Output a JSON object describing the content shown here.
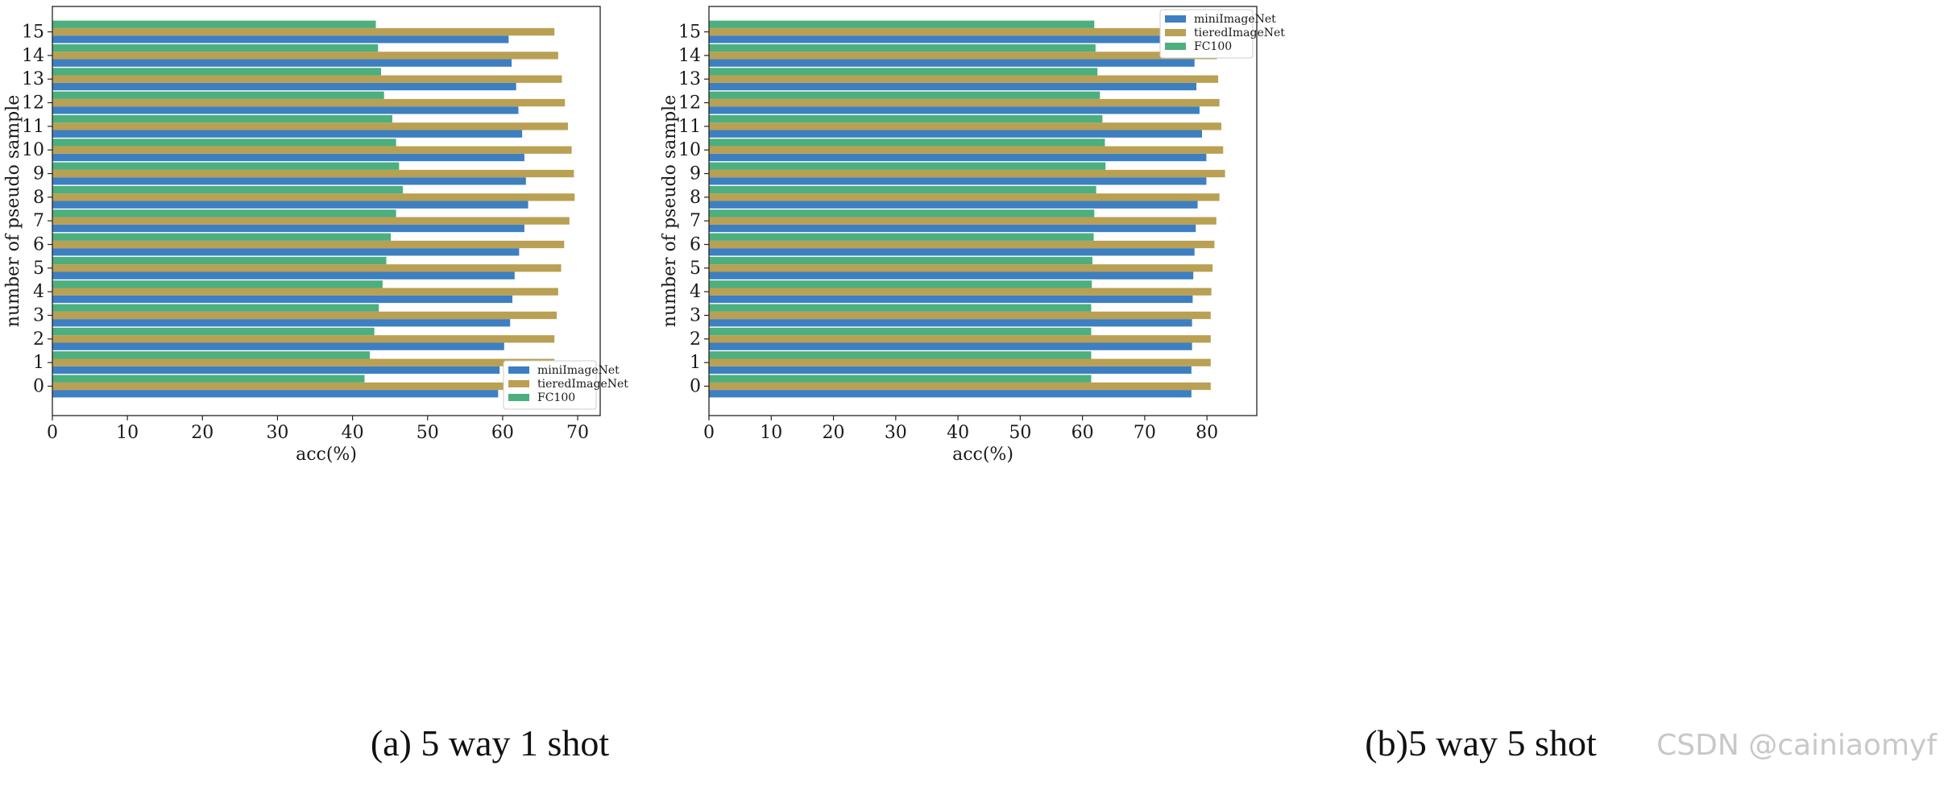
{
  "chart_data": [
    {
      "id": "a",
      "type": "bar",
      "orientation": "horizontal",
      "title": "",
      "caption": "(a) 5 way 1 shot",
      "xlabel": "acc(%)",
      "ylabel": "number of pseudo sample",
      "xlim": [
        0,
        73
      ],
      "xticks": [
        0,
        10,
        20,
        30,
        40,
        50,
        60,
        70
      ],
      "categories": [
        "0",
        "1",
        "2",
        "3",
        "4",
        "5",
        "6",
        "7",
        "8",
        "9",
        "10",
        "11",
        "12",
        "13",
        "14",
        "15"
      ],
      "legend_position": "bottom-right",
      "series": [
        {
          "name": "miniImageNet",
          "color": "#3d7fc1",
          "values": [
            59.4,
            59.6,
            60.2,
            61.0,
            61.3,
            61.6,
            62.2,
            62.9,
            63.4,
            63.1,
            62.9,
            62.6,
            62.1,
            61.8,
            61.2,
            60.8
          ]
        },
        {
          "name": "tieredImageNet",
          "color": "#b9a053",
          "values": [
            66.9,
            66.9,
            66.9,
            67.2,
            67.4,
            67.8,
            68.2,
            68.9,
            69.6,
            69.5,
            69.2,
            68.7,
            68.3,
            67.9,
            67.4,
            66.9
          ]
        },
        {
          "name": "FC100",
          "color": "#4caf7d",
          "values": [
            41.6,
            42.3,
            42.9,
            43.5,
            44.0,
            44.5,
            45.1,
            45.8,
            46.7,
            46.2,
            45.8,
            45.3,
            44.2,
            43.8,
            43.4,
            43.1
          ]
        }
      ]
    },
    {
      "id": "b",
      "type": "bar",
      "orientation": "horizontal",
      "title": "",
      "caption": "(b)5 way 5 shot",
      "xlabel": "acc(%)",
      "ylabel": "number of pseudo sample",
      "xlim": [
        0,
        88
      ],
      "xticks": [
        0,
        10,
        20,
        30,
        40,
        50,
        60,
        70,
        80
      ],
      "categories": [
        "0",
        "1",
        "2",
        "3",
        "4",
        "5",
        "6",
        "7",
        "8",
        "9",
        "10",
        "11",
        "12",
        "13",
        "14",
        "15"
      ],
      "legend_position": "top-right",
      "series": [
        {
          "name": "miniImageNet",
          "color": "#3d7fc1",
          "values": [
            77.5,
            77.5,
            77.6,
            77.6,
            77.7,
            77.8,
            78.0,
            78.2,
            78.5,
            79.9,
            79.9,
            79.2,
            78.8,
            78.3,
            78.0,
            77.9
          ]
        },
        {
          "name": "tieredImageNet",
          "color": "#b9a053",
          "values": [
            80.6,
            80.6,
            80.6,
            80.6,
            80.7,
            80.9,
            81.2,
            81.5,
            82.0,
            82.9,
            82.6,
            82.3,
            82.0,
            81.8,
            81.6,
            81.5
          ]
        },
        {
          "name": "FC100",
          "color": "#4caf7d",
          "values": [
            61.4,
            61.4,
            61.4,
            61.4,
            61.5,
            61.6,
            61.8,
            61.9,
            62.2,
            63.7,
            63.6,
            63.2,
            62.8,
            62.4,
            62.1,
            61.9
          ]
        }
      ]
    }
  ],
  "watermark": "CSDN @cainiaomyf"
}
